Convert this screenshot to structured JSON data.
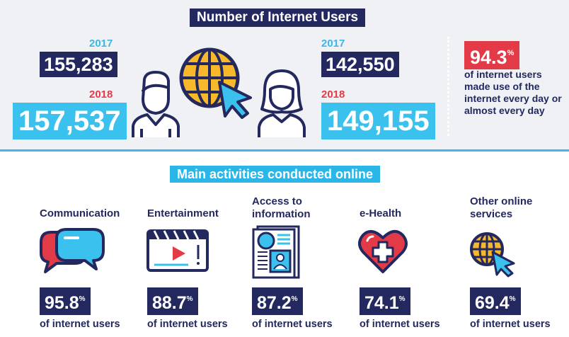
{
  "header": {
    "title": "Number of Internet Users"
  },
  "users": {
    "left": {
      "year_2017": "2017",
      "value_2017": "155,283",
      "year_2018": "2018",
      "value_2018": "157,537"
    },
    "right": {
      "year_2017": "2017",
      "value_2017": "142,550",
      "year_2018": "2018",
      "value_2018": "149,155"
    }
  },
  "daily": {
    "value": "94.3",
    "unit": "%",
    "text": "of internet users made use of the internet every day or almost every day"
  },
  "activities_title": "Main activities conducted online",
  "activities": [
    {
      "label": "Communication",
      "value": "95.8",
      "unit": "%",
      "foot": "of internet users",
      "icon": "speech-bubbles-icon"
    },
    {
      "label": "Entertainment",
      "value": "88.7",
      "unit": "%",
      "foot": "of internet users",
      "icon": "video-player-icon"
    },
    {
      "label": "Access to information",
      "value": "87.2",
      "unit": "%",
      "foot": "of internet users",
      "icon": "newspaper-icon"
    },
    {
      "label": "e-Health",
      "value": "74.1",
      "unit": "%",
      "foot": "of internet users",
      "icon": "heart-cross-icon"
    },
    {
      "label": "Other online services",
      "value": "69.4",
      "unit": "%",
      "foot": "of internet users",
      "icon": "globe-cursor-icon"
    }
  ],
  "colors": {
    "navy": "#23295f",
    "cyan": "#3bc1ee",
    "red": "#e33a47",
    "yellow": "#f7b82b",
    "band": "#f0f1f5"
  }
}
